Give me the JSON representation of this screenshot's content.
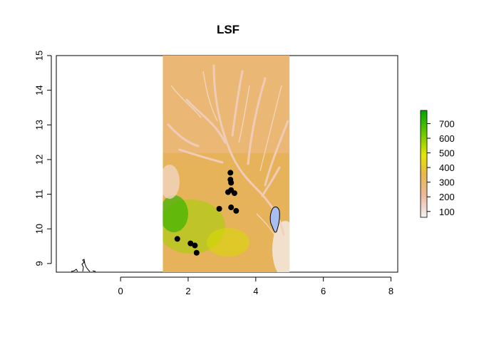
{
  "title": "LSF",
  "chart_data": {
    "type": "scatter",
    "title": "LSF",
    "xlim": [
      -1.9,
      8.2
    ],
    "ylim": [
      8.75,
      15
    ],
    "x_ticks": [
      0,
      2,
      4,
      6,
      8
    ],
    "y_ticks": [
      9,
      10,
      11,
      12,
      13,
      14,
      15
    ],
    "raster_extent": {
      "x": [
        1.25,
        5.0
      ],
      "y": [
        8.75,
        15
      ]
    },
    "raster_color_ramp": [
      "#f2f2f2",
      "#eeb99f",
      "#eab64e",
      "#e6e600",
      "#63c600",
      "#00a600"
    ],
    "legend": {
      "labels": [
        "100",
        "200",
        "300",
        "400",
        "500",
        "600",
        "700"
      ],
      "values": [
        100,
        200,
        300,
        400,
        500,
        600,
        700
      ],
      "range": [
        60,
        790
      ]
    },
    "points": [
      {
        "x": 3.25,
        "y": 11.62
      },
      {
        "x": 3.25,
        "y": 11.42
      },
      {
        "x": 3.27,
        "y": 11.33
      },
      {
        "x": 3.27,
        "y": 11.12
      },
      {
        "x": 3.18,
        "y": 11.06
      },
      {
        "x": 3.37,
        "y": 11.03
      },
      {
        "x": 2.92,
        "y": 10.58
      },
      {
        "x": 3.27,
        "y": 10.62
      },
      {
        "x": 3.42,
        "y": 10.52
      },
      {
        "x": 1.68,
        "y": 9.71
      },
      {
        "x": 2.07,
        "y": 9.58
      },
      {
        "x": 2.2,
        "y": 9.52
      },
      {
        "x": 2.25,
        "y": 9.31
      }
    ]
  }
}
